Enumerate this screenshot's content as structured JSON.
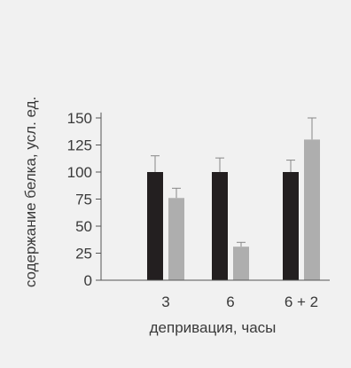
{
  "chart_data": {
    "type": "bar",
    "xlabel": "депривация, часы",
    "ylabel": "содержание белка, усл. ед.",
    "categories": [
      "3",
      "6",
      "6 + 2"
    ],
    "yticks": [
      0,
      25,
      50,
      75,
      100,
      125,
      150
    ],
    "ylim": [
      0,
      155
    ],
    "grid": false,
    "series": [
      {
        "values": [
          100,
          100,
          100
        ],
        "errors": [
          15,
          13,
          11
        ],
        "color": "#231f20"
      },
      {
        "values": [
          76,
          31,
          130
        ],
        "errors": [
          9,
          4,
          20
        ],
        "color": "#aeaeae"
      }
    ]
  }
}
